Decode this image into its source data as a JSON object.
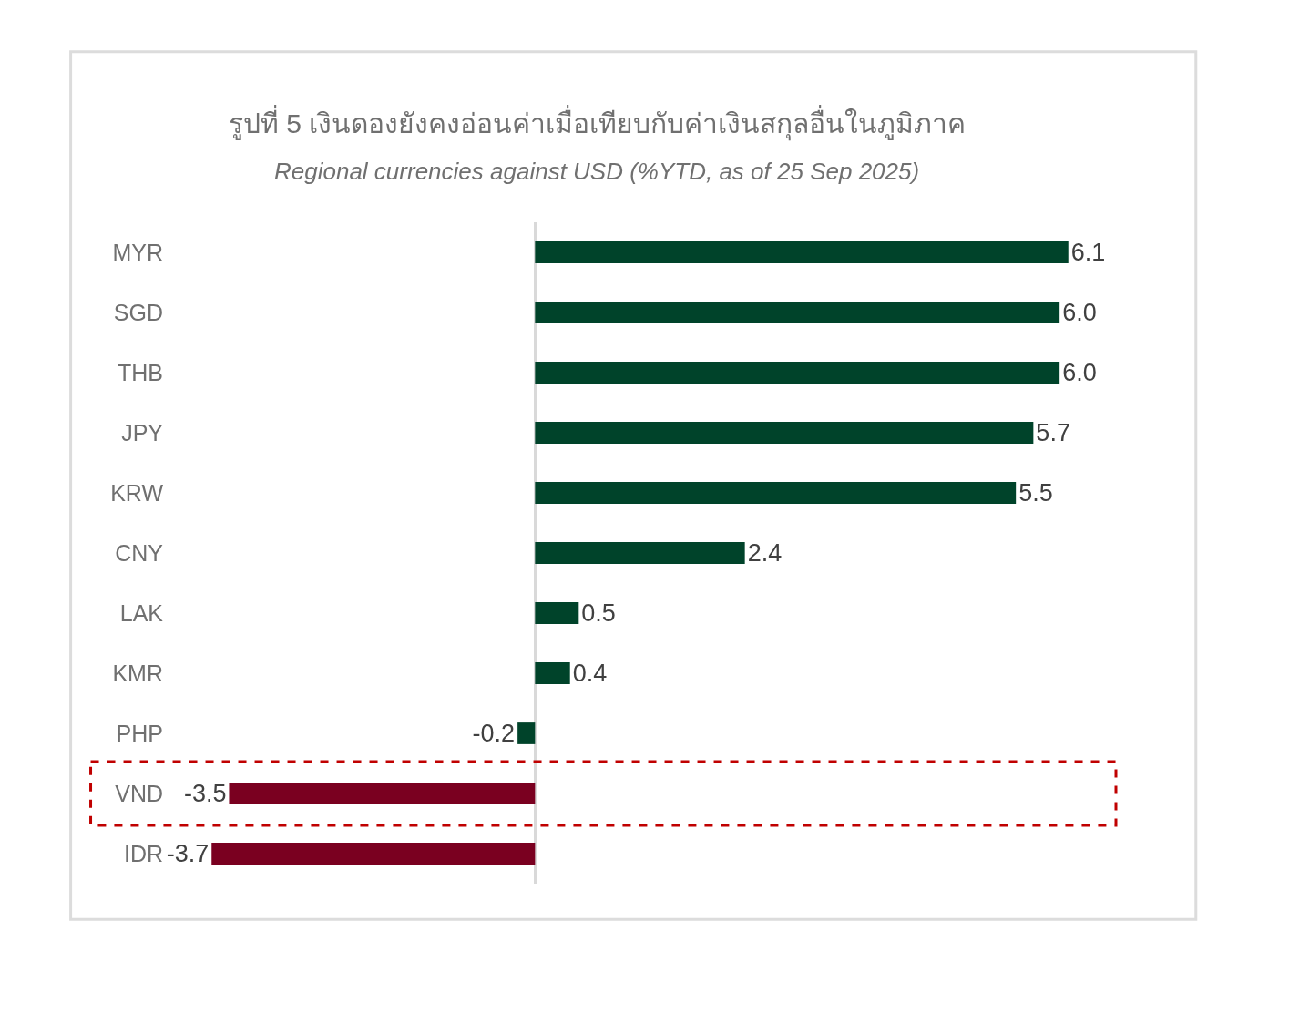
{
  "chart_data": {
    "type": "bar",
    "orientation": "horizontal",
    "title": "รูปที่ 5 เงินดองยังคงอ่อนค่าเมื่อเทียบกับค่าเงินสกุลอื่นในภูมิภาค",
    "subtitle": "Regional currencies against USD (%YTD, as of 25 Sep 2025)",
    "categories": [
      "MYR",
      "SGD",
      "THB",
      "JPY",
      "KRW",
      "CNY",
      "LAK",
      "KMR",
      "PHP",
      "VND",
      "IDR"
    ],
    "values": [
      6.1,
      6.0,
      6.0,
      5.7,
      5.5,
      2.4,
      0.5,
      0.4,
      -0.2,
      -3.5,
      -3.7
    ],
    "value_labels": [
      "6.1",
      "6.0",
      "6.0",
      "5.7",
      "5.5",
      "2.4",
      "0.5",
      "0.4",
      "-0.2",
      "-3.5",
      "-3.7"
    ],
    "colors": [
      "#00432a",
      "#00432a",
      "#00432a",
      "#00432a",
      "#00432a",
      "#00432a",
      "#00432a",
      "#00432a",
      "#00432a",
      "#7a0020",
      "#7a0020"
    ]
  }
}
